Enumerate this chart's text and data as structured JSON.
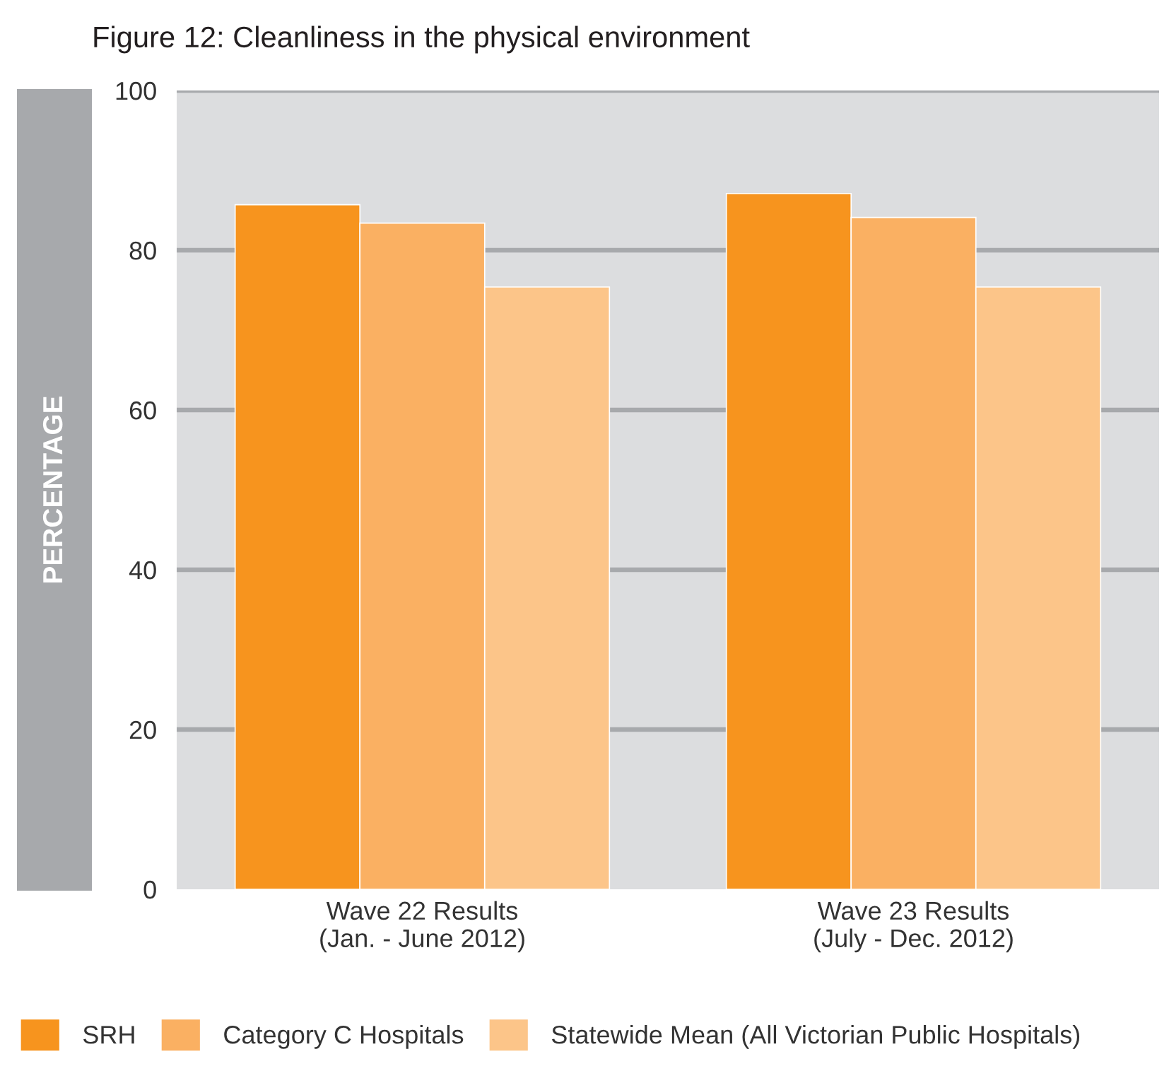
{
  "chart_data": {
    "type": "bar",
    "title": "Figure 12: Cleanliness in the physical environment",
    "ylabel": "PERCENTAGE",
    "categories": [
      "Wave 22 Results\n(Jan. - June 2012)",
      "Wave 23 Results\n(July - Dec. 2012)"
    ],
    "series": [
      {
        "name": "SRH",
        "color": "#f7941e",
        "values": [
          85.7,
          87.1
        ]
      },
      {
        "name": "Category C Hospitals",
        "color": "#fab062",
        "values": [
          83.4,
          84.1
        ]
      },
      {
        "name": "Statewide Mean (All Victorian Public Hospitals)",
        "color": "#fcc589",
        "values": [
          75.4,
          75.4
        ]
      }
    ],
    "ylim": [
      0,
      100
    ],
    "yticks": [
      0,
      20,
      40,
      60,
      80,
      100
    ],
    "grid": "y",
    "legend": "bottom"
  }
}
